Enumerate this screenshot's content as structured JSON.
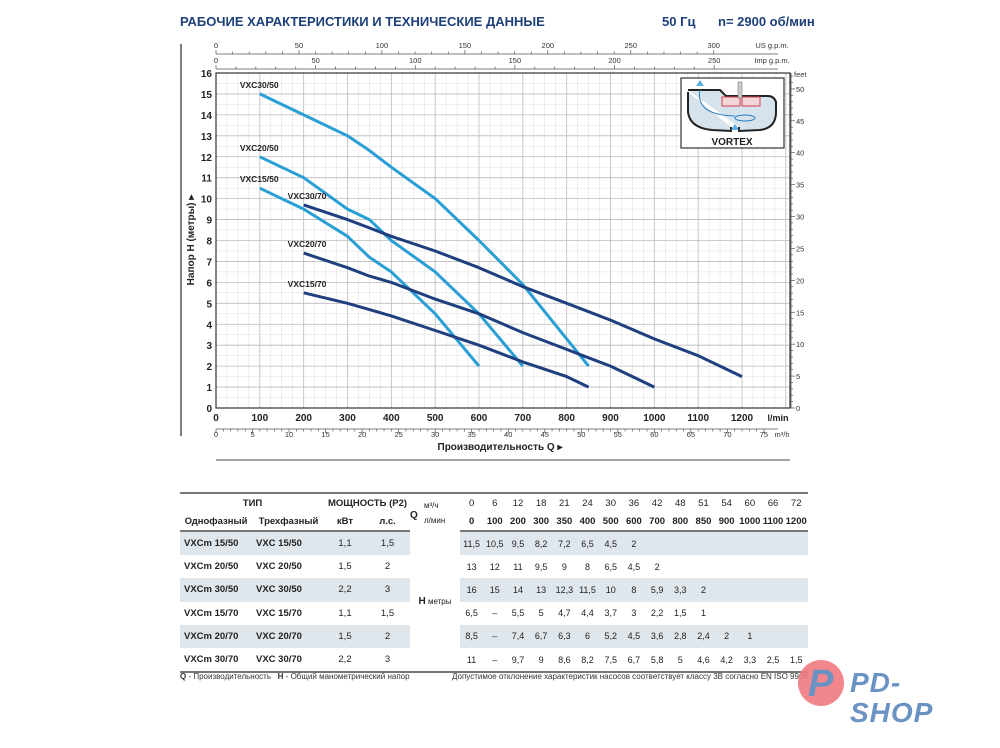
{
  "header": {
    "title": "РАБОЧИЕ ХАРАКТЕРИСТИКИ И ТЕХНИЧЕСКИЕ ДАННЫЕ",
    "frequency": "50 Гц",
    "speed": "n= 2900 об/мин"
  },
  "chart_data": {
    "type": "line",
    "xlabel": "Производительность Q",
    "ylabel": "Напор H (метры)",
    "x_unit": "l/min",
    "xlim": [
      0,
      1310
    ],
    "ylim": [
      0,
      16
    ],
    "grid": true,
    "x_ticks": [
      0,
      100,
      200,
      300,
      400,
      500,
      600,
      700,
      800,
      900,
      1000,
      1100,
      1200
    ],
    "y_ticks": [
      0,
      1,
      2,
      3,
      4,
      5,
      6,
      7,
      8,
      9,
      10,
      11,
      12,
      13,
      14,
      15,
      16
    ],
    "secondary_axes": {
      "us_gpm": {
        "label": "US g.p.m.",
        "ticks": [
          0,
          50,
          100,
          150,
          200,
          250,
          300
        ]
      },
      "imp_gpm": {
        "label": "Imp g.p.m.",
        "ticks": [
          0,
          50,
          100,
          150,
          200,
          250
        ]
      },
      "m3h": {
        "label": "m³/h",
        "ticks": [
          0,
          5,
          10,
          15,
          20,
          25,
          30,
          35,
          40,
          45,
          50,
          55,
          60,
          65,
          70,
          75
        ]
      },
      "feet": {
        "label": "feet",
        "ticks": [
          0,
          5,
          10,
          15,
          20,
          25,
          30,
          35,
          40,
          45,
          50
        ]
      }
    },
    "colors": {
      "series_50": "#2a9fd6",
      "series_70": "#1f3f7f"
    },
    "series": [
      {
        "name": "VXC30/50",
        "x": [
          100,
          200,
          300,
          350,
          400,
          500,
          600,
          700,
          800,
          850
        ],
        "y": [
          15,
          14,
          13,
          12.3,
          11.5,
          10,
          8,
          5.9,
          3.3,
          2
        ]
      },
      {
        "name": "VXC20/50",
        "x": [
          100,
          200,
          300,
          350,
          400,
          500,
          600,
          700
        ],
        "y": [
          12,
          11,
          9.5,
          9,
          8,
          6.5,
          4.5,
          2
        ]
      },
      {
        "name": "VXC15/50",
        "x": [
          100,
          200,
          300,
          350,
          400,
          500,
          600
        ],
        "y": [
          10.5,
          9.5,
          8.2,
          7.2,
          6.5,
          4.5,
          2
        ]
      },
      {
        "name": "VXC30/70",
        "x": [
          200,
          300,
          350,
          400,
          500,
          600,
          700,
          800,
          850,
          900,
          1000,
          1100,
          1200
        ],
        "y": [
          9.7,
          9,
          8.6,
          8.2,
          7.5,
          6.7,
          5.8,
          5,
          4.6,
          4.2,
          3.3,
          2.5,
          1.5
        ]
      },
      {
        "name": "VXC20/70",
        "x": [
          200,
          300,
          350,
          400,
          500,
          600,
          700,
          800,
          850,
          900,
          1000
        ],
        "y": [
          7.4,
          6.7,
          6.3,
          6,
          5.2,
          4.5,
          3.6,
          2.8,
          2.4,
          2,
          1
        ]
      },
      {
        "name": "VXC15/70",
        "x": [
          200,
          300,
          350,
          400,
          500,
          600,
          700,
          800,
          850
        ],
        "y": [
          5.5,
          5,
          4.7,
          4.4,
          3.7,
          3,
          2.2,
          1.5,
          1
        ]
      }
    ],
    "inset_label": "VORTEX"
  },
  "table": {
    "type_header": "ТИП",
    "power_header": "МОЩНОСТЬ (P2)",
    "single_phase": "Однофазный",
    "three_phase": "Трехфазный",
    "kw": "кВт",
    "hp": "л.с.",
    "q_label": "Q",
    "q_unit_m3h": "м³/ч",
    "q_unit_lmin": "л/мин",
    "h_label": "H",
    "h_unit": "метры",
    "q_m3h": [
      "0",
      "6",
      "12",
      "18",
      "21",
      "24",
      "30",
      "36",
      "42",
      "48",
      "51",
      "54",
      "60",
      "66",
      "72"
    ],
    "q_lmin": [
      "0",
      "100",
      "200",
      "300",
      "350",
      "400",
      "500",
      "600",
      "700",
      "800",
      "850",
      "900",
      "1000",
      "1100",
      "1200"
    ],
    "rows": [
      {
        "single": "VXCm 15/50",
        "three": "VXC 15/50",
        "kw": "1,1",
        "hp": "1,5",
        "h": [
          "11,5",
          "10,5",
          "9,5",
          "8,2",
          "7,2",
          "6,5",
          "4,5",
          "2",
          "",
          "",
          "",
          "",
          "",
          "",
          ""
        ]
      },
      {
        "single": "VXCm 20/50",
        "three": "VXC 20/50",
        "kw": "1,5",
        "hp": "2",
        "h": [
          "13",
          "12",
          "11",
          "9,5",
          "9",
          "8",
          "6,5",
          "4,5",
          "2",
          "",
          "",
          "",
          "",
          "",
          ""
        ]
      },
      {
        "single": "VXCm 30/50",
        "three": "VXC 30/50",
        "kw": "2,2",
        "hp": "3",
        "h": [
          "16",
          "15",
          "14",
          "13",
          "12,3",
          "11,5",
          "10",
          "8",
          "5,9",
          "3,3",
          "2",
          "",
          "",
          "",
          ""
        ]
      },
      {
        "single": "VXCm 15/70",
        "three": "VXC 15/70",
        "kw": "1,1",
        "hp": "1,5",
        "h": [
          "6,5",
          "–",
          "5,5",
          "5",
          "4,7",
          "4,4",
          "3,7",
          "3",
          "2,2",
          "1,5",
          "1",
          "",
          "",
          "",
          ""
        ]
      },
      {
        "single": "VXCm 20/70",
        "three": "VXC 20/70",
        "kw": "1,5",
        "hp": "2",
        "h": [
          "8,5",
          "–",
          "7,4",
          "6,7",
          "6,3",
          "6",
          "5,2",
          "4,5",
          "3,6",
          "2,8",
          "2,4",
          "2",
          "1",
          "",
          ""
        ]
      },
      {
        "single": "VXCm 30/70",
        "three": "VXC 30/70",
        "kw": "2,2",
        "hp": "3",
        "h": [
          "11",
          "–",
          "9,7",
          "9",
          "8,6",
          "8,2",
          "7,5",
          "6,7",
          "5,8",
          "5",
          "4,6",
          "4,2",
          "3,3",
          "2,5",
          "1,5"
        ]
      }
    ]
  },
  "footer": {
    "q_key": "Q",
    "q_desc": " - Производительность",
    "h_key": "H",
    "h_desc": " - Общий манометрический напор",
    "tolerance": "Допустимое отклонение характеристик насосов соответствует классу 3В согласно EN ISO 9906"
  },
  "logo": {
    "text": "PD-SHOP",
    "color": "#6a93c4",
    "accent": "#f07a7f"
  }
}
